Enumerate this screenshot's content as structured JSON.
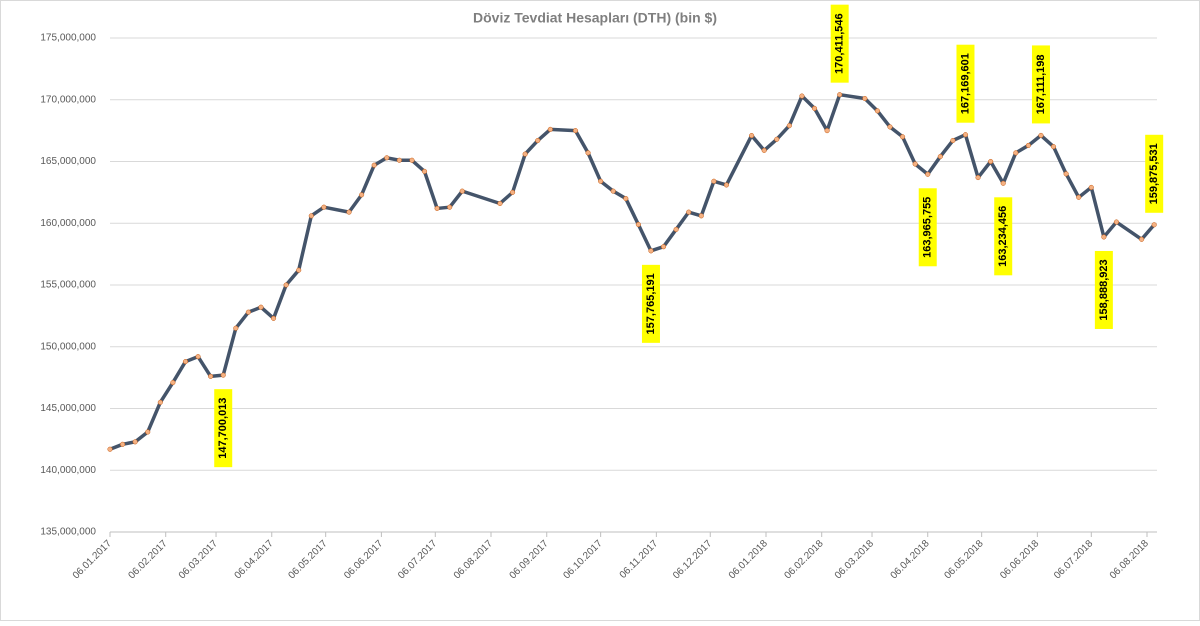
{
  "chart_data": {
    "type": "line",
    "title": "Döviz Tevdiat Hesapları (DTH) (bin $)",
    "x": [
      "06.01.2017",
      "13.01.2017",
      "20.01.2017",
      "27.01.2017",
      "03.02.2017",
      "10.02.2017",
      "17.02.2017",
      "24.02.2017",
      "03.03.2017",
      "10.03.2017",
      "17.03.2017",
      "24.03.2017",
      "31.03.2017",
      "07.04.2017",
      "14.04.2017",
      "21.04.2017",
      "28.04.2017",
      "05.05.2017",
      "19.05.2017",
      "26.05.2017",
      "02.06.2017",
      "09.06.2017",
      "16.06.2017",
      "23.06.2017",
      "30.06.2017",
      "07.07.2017",
      "14.07.2017",
      "21.07.2017",
      "11.08.2017",
      "18.08.2017",
      "25.08.2017",
      "01.09.2017",
      "08.09.2017",
      "22.09.2017",
      "29.09.2017",
      "06.10.2017",
      "13.10.2017",
      "20.10.2017",
      "27.10.2017",
      "03.11.2017",
      "10.11.2017",
      "17.11.2017",
      "24.11.2017",
      "01.12.2017",
      "08.12.2017",
      "15.12.2017",
      "29.12.2017",
      "05.01.2018",
      "12.01.2018",
      "19.01.2018",
      "26.01.2018",
      "02.02.2018",
      "09.02.2018",
      "16.02.2018",
      "02.03.2018",
      "09.03.2018",
      "16.03.2018",
      "23.03.2018",
      "30.03.2018",
      "06.04.2018",
      "13.04.2018",
      "20.04.2018",
      "27.04.2018",
      "04.05.2018",
      "11.05.2018",
      "18.05.2018",
      "25.05.2018",
      "01.06.2018",
      "08.06.2018",
      "15.06.2018",
      "22.06.2018",
      "29.06.2018",
      "06.07.2018",
      "13.07.2018",
      "20.07.2018",
      "03.08.2018",
      "10.08.2018"
    ],
    "series": [
      {
        "name": "DTH",
        "color": "#44546a",
        "marker_color": "#f4b183",
        "values": [
          141700000,
          142100000,
          142300000,
          143100000,
          145500000,
          147100000,
          148800000,
          149200000,
          147600000,
          147700013,
          151500000,
          152800000,
          153200000,
          152300000,
          155000000,
          156200000,
          160600000,
          161300000,
          160900000,
          162300000,
          164700000,
          165300000,
          165100000,
          165100000,
          164200000,
          161200000,
          161300000,
          162600000,
          161600000,
          162500000,
          165600000,
          166700000,
          167600000,
          167500000,
          165700000,
          163400000,
          162600000,
          162000000,
          159900000,
          157765191,
          158100000,
          159500000,
          160900000,
          160600000,
          163400000,
          163100000,
          167100000,
          165900000,
          166800000,
          167900000,
          170300000,
          169300000,
          167500000,
          170411546,
          170100000,
          169100000,
          167800000,
          167000000,
          164800000,
          163965755,
          165400000,
          166700000,
          167169601,
          163700000,
          165000000,
          163234456,
          165700000,
          166300000,
          167111198,
          166200000,
          164000000,
          162100000,
          162900000,
          158888923,
          160100000,
          158700000,
          159875531
        ],
        "value_labels": [
          null,
          null,
          null,
          null,
          null,
          null,
          null,
          null,
          null,
          "147,700,013",
          null,
          null,
          null,
          null,
          null,
          null,
          null,
          null,
          null,
          null,
          null,
          null,
          null,
          null,
          null,
          null,
          null,
          null,
          null,
          null,
          null,
          null,
          null,
          null,
          null,
          null,
          null,
          null,
          null,
          "157,765,191",
          null,
          null,
          null,
          null,
          null,
          null,
          null,
          null,
          null,
          null,
          null,
          null,
          null,
          "170,411,546",
          null,
          null,
          null,
          null,
          null,
          "163,965,755",
          null,
          null,
          "167,169,601",
          null,
          null,
          "163,234,456",
          null,
          null,
          "167,111,198",
          null,
          null,
          null,
          null,
          "158,888,923",
          null,
          null,
          "159,875,531"
        ]
      }
    ],
    "xlim": [
      "06.01.2017",
      "06.08.2018"
    ],
    "xticks": [
      "06.01.2017",
      "06.02.2017",
      "06.03.2017",
      "06.04.2017",
      "06.05.2017",
      "06.06.2017",
      "06.07.2017",
      "06.08.2017",
      "06.09.2017",
      "06.10.2017",
      "06.11.2017",
      "06.12.2017",
      "06.01.2018",
      "06.02.2018",
      "06.03.2018",
      "06.04.2018",
      "06.05.2018",
      "06.06.2018",
      "06.07.2018",
      "06.08.2018"
    ],
    "ylim": [
      135000000,
      175000000
    ],
    "yticks": [
      {
        "value": 135000000,
        "label": "135,000,000"
      },
      {
        "value": 140000000,
        "label": "140,000,000"
      },
      {
        "value": 145000000,
        "label": "145,000,000"
      },
      {
        "value": 150000000,
        "label": "150,000,000"
      },
      {
        "value": 155000000,
        "label": "155,000,000"
      },
      {
        "value": 160000000,
        "label": "160,000,000"
      },
      {
        "value": 165000000,
        "label": "165,000,000"
      },
      {
        "value": 170000000,
        "label": "170,000,000"
      },
      {
        "value": 175000000,
        "label": "175,000,000"
      }
    ],
    "grid": true,
    "label_color": "#ffff00"
  }
}
